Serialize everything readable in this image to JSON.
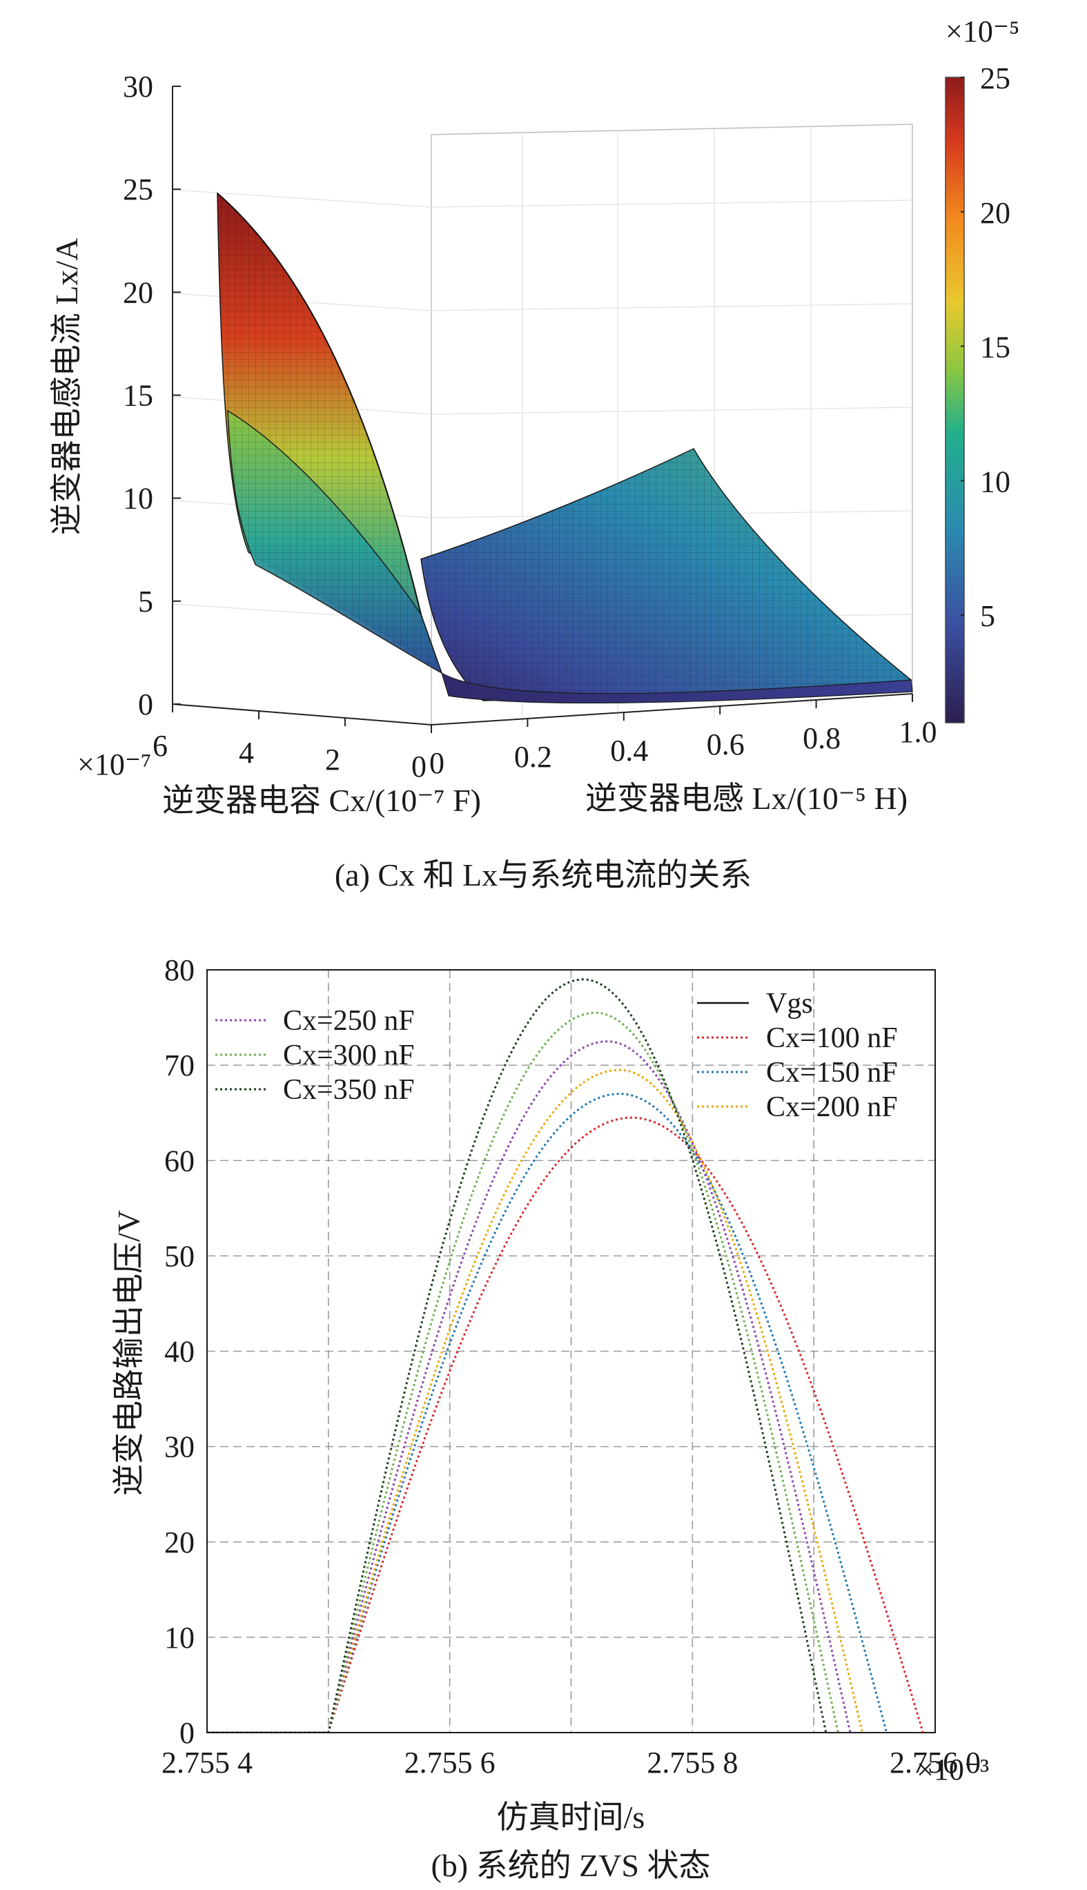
{
  "chart_data": [
    {
      "type": "surface",
      "xlabel": "逆变器电感 Lx/(10⁻⁵ H)",
      "ylabel": "逆变器电容 Cx/(10⁻⁷ F)",
      "zlabel": "逆变器电感电流 Lx/A",
      "x_ticks": [
        "0",
        "0.2",
        "0.4",
        "0.6",
        "0.8",
        "1.0"
      ],
      "y_ticks": [
        "6",
        "4",
        "2",
        "0"
      ],
      "z_ticks": [
        "0",
        "5",
        "10",
        "15",
        "20",
        "25",
        "30"
      ],
      "y_multiplier": "×10⁻⁷",
      "xlim": [
        0,
        1.0
      ],
      "ylim": [
        0,
        6
      ],
      "zlim": [
        0,
        30
      ],
      "colorbar": {
        "ticks": [
          "5",
          "10",
          "15",
          "20",
          "25"
        ],
        "multiplier": "×10⁻⁵",
        "range": [
          1,
          25
        ],
        "colors": [
          "#3a1f5d",
          "#3b4fa0",
          "#2a8bb0",
          "#24b08c",
          "#8dc63f",
          "#e8c92f",
          "#f28a1e",
          "#d63a1e",
          "#8e1b1b"
        ]
      },
      "caption": "(a)  Cx 和 Lx与系统电流的关系"
    },
    {
      "type": "line",
      "xlabel": "仿真时间/s",
      "ylabel": "逆变电路输出电压/V",
      "x_ticks": [
        "2.755 4",
        "2.755 6",
        "2.755 8",
        "2.756 0"
      ],
      "x_multiplier": "×10⁻³",
      "y_ticks": [
        "0",
        "10",
        "20",
        "30",
        "40",
        "50",
        "60",
        "70",
        "80"
      ],
      "xlim": [
        2.7554,
        2.756
      ],
      "ylim": [
        0,
        80
      ],
      "grid": true,
      "legend_left": [
        "Cx=250 nF",
        "Cx=300 nF",
        "Cx=350 nF"
      ],
      "legend_right": [
        "Vgs",
        "Cx=100 nF",
        "Cx=150 nF",
        "Cx=200 nF"
      ],
      "series": [
        {
          "name": "Cx=100 nF",
          "color": "#d62728",
          "start": 2.7555,
          "peak_x": 2.75575,
          "peak": 64.5,
          "end": 2.75599
        },
        {
          "name": "Cx=150 nF",
          "color": "#1f77b4",
          "start": 2.7555,
          "peak_x": 2.75574,
          "peak": 67.0,
          "end": 2.75596
        },
        {
          "name": "Cx=200 nF",
          "color": "#e8a600",
          "start": 2.7555,
          "peak_x": 2.75574,
          "peak": 69.5,
          "end": 2.75594
        },
        {
          "name": "Cx=250 nF",
          "color": "#8e44ad",
          "start": 2.7555,
          "peak_x": 2.75573,
          "peak": 72.5,
          "end": 2.75593
        },
        {
          "name": "Cx=300 nF",
          "color": "#6ab04c",
          "start": 2.7555,
          "peak_x": 2.75572,
          "peak": 75.5,
          "end": 2.75592
        },
        {
          "name": "Cx=350 nF",
          "color": "#1e3d1e",
          "start": 2.7555,
          "peak_x": 2.75571,
          "peak": 79.0,
          "end": 2.75591
        }
      ],
      "caption": "(b) 系统的 ZVS 状态"
    }
  ]
}
